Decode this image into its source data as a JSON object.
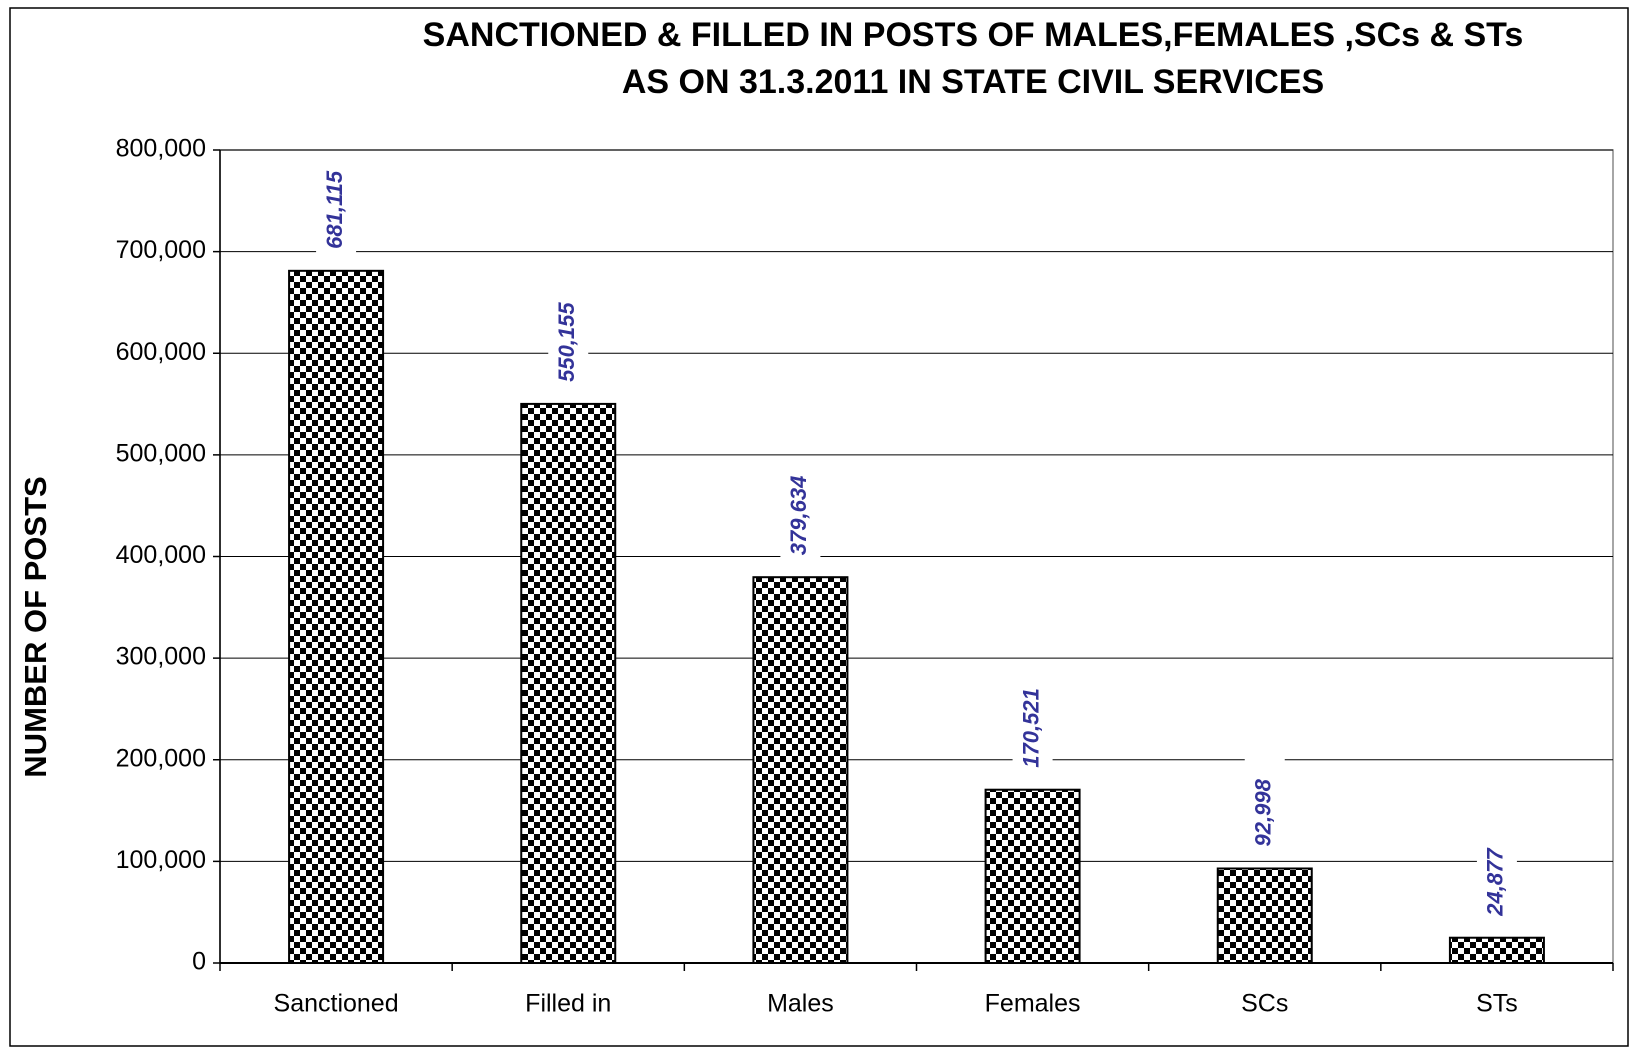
{
  "chart_data": {
    "type": "bar",
    "title": [
      "SANCTIONED & FILLED IN POSTS OF MALES,FEMALES ,SCs & STs",
      "AS ON 31.3.2011 IN STATE CIVIL SERVICES"
    ],
    "y_label": "NUMBER OF POSTS",
    "categories": [
      "Sanctioned",
      "Filled in",
      "Males",
      "Females",
      "SCs",
      "STs"
    ],
    "values": [
      681115,
      550155,
      379634,
      170521,
      92998,
      24877
    ],
    "value_labels": [
      "681,115",
      "550,155",
      "379,634",
      "170,521",
      "92,998",
      "24,877"
    ],
    "color": "#000000",
    "ylim": [
      0,
      800000
    ],
    "yticks": [
      0,
      {
        "value": 100000,
        "label": "100,000"
      },
      {
        "value": 200000,
        "label": "200,000"
      },
      {
        "value": 300000,
        "label": "300,000"
      },
      {
        "value": 400000,
        "label": "400,000"
      },
      {
        "value": 500000,
        "label": "500,000"
      },
      {
        "value": 600000,
        "label": "600,000"
      },
      {
        "value": 700000,
        "label": "700,000"
      },
      {
        "value": 800000,
        "label": "800,000"
      }
    ],
    "grid": true
  }
}
